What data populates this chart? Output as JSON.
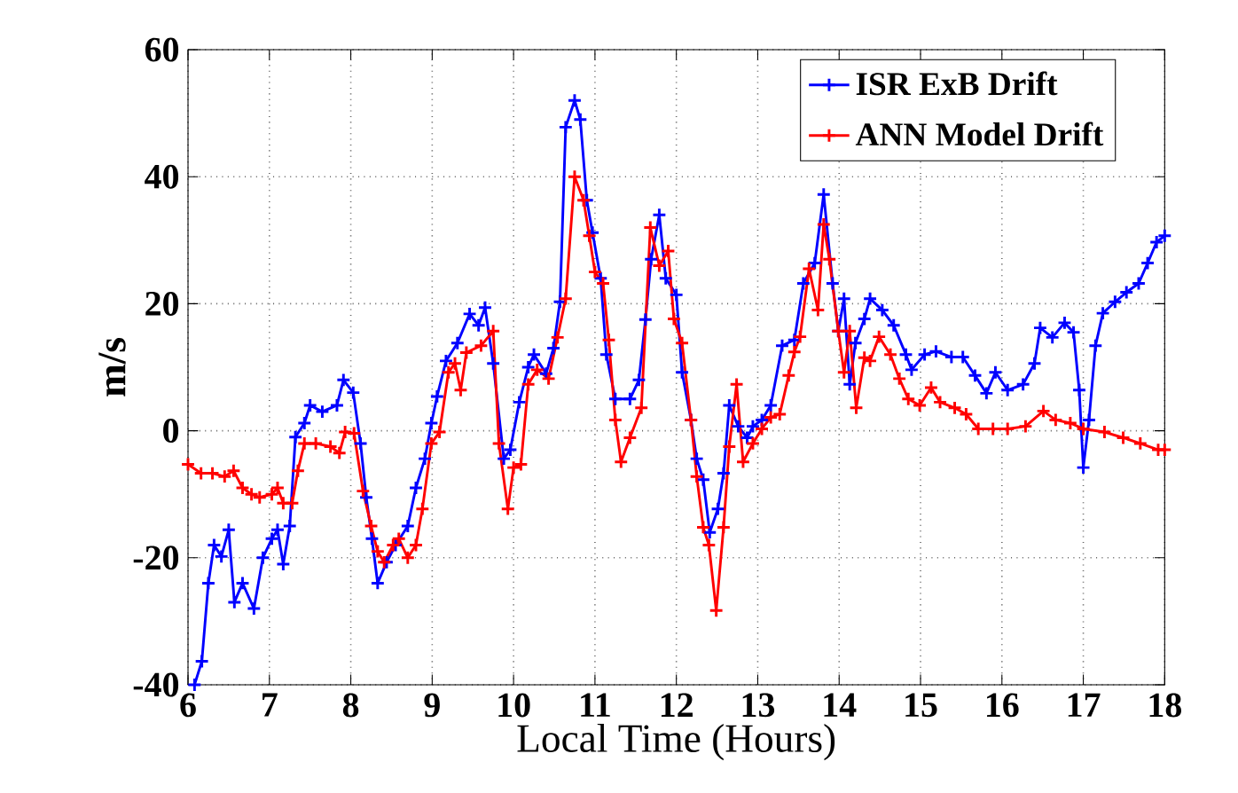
{
  "chart_data": {
    "type": "line",
    "xlabel": "Local Time (Hours)",
    "ylabel": "m/s",
    "xlim": [
      6,
      18
    ],
    "ylim": [
      -40,
      60
    ],
    "xticks": [
      6,
      7,
      8,
      9,
      10,
      11,
      12,
      13,
      14,
      15,
      16,
      17,
      18
    ],
    "yticks": [
      -40,
      -20,
      0,
      20,
      40,
      60
    ],
    "grid": true,
    "legend": "top right",
    "marker": "cross",
    "line_style": "solid",
    "series": [
      {
        "name": "ISR ExB Drift",
        "color": "#0000ff",
        "x": [
          6.08,
          6.17,
          6.25,
          6.32,
          6.41,
          6.5,
          6.57,
          6.67,
          6.81,
          6.92,
          7.03,
          7.1,
          7.17,
          7.25,
          7.32,
          7.43,
          7.5,
          7.65,
          7.83,
          7.91,
          8.03,
          8.12,
          8.19,
          8.26,
          8.33,
          8.44,
          8.55,
          8.7,
          8.8,
          8.91,
          8.99,
          9.06,
          9.17,
          9.31,
          9.46,
          9.57,
          9.65,
          9.75,
          9.88,
          9.96,
          10.07,
          10.18,
          10.25,
          10.4,
          10.49,
          10.57,
          10.64,
          10.75,
          10.82,
          10.9,
          10.97,
          11.07,
          11.14,
          11.25,
          11.43,
          11.54,
          11.62,
          11.69,
          11.79,
          11.87,
          12.0,
          12.07,
          12.18,
          12.25,
          12.33,
          12.41,
          12.51,
          12.58,
          12.65,
          12.76,
          12.87,
          12.94,
          13.05,
          13.16,
          13.3,
          13.45,
          13.56,
          13.7,
          13.81,
          13.92,
          13.99,
          14.06,
          14.13,
          14.2,
          14.31,
          14.38,
          14.53,
          14.67,
          14.82,
          14.89,
          15.05,
          15.19,
          15.38,
          15.52,
          15.67,
          15.81,
          15.92,
          16.07,
          16.26,
          16.4,
          16.47,
          16.62,
          16.77,
          16.88,
          16.95,
          17.0,
          17.07,
          17.15,
          17.24,
          17.39,
          17.53,
          17.68,
          17.79,
          17.9,
          18.0
        ],
        "values": [
          -40,
          -36.3,
          -24,
          -18,
          -19.8,
          -15.6,
          -27,
          -24,
          -28,
          -20,
          -17,
          -15.6,
          -21,
          -15,
          -1,
          1.2,
          4,
          3,
          4,
          8,
          6,
          -2,
          -10.5,
          -17,
          -24,
          -20.7,
          -18,
          -15,
          -9,
          -4.4,
          1.2,
          5.4,
          11,
          13.8,
          18.4,
          16.6,
          19.4,
          10.6,
          -4.4,
          -3,
          4.5,
          10,
          12,
          9,
          13,
          20.3,
          47.8,
          52,
          49,
          36.3,
          31.2,
          24,
          12,
          5,
          5,
          8,
          17.5,
          27,
          34,
          24,
          21.4,
          9.2,
          1.7,
          -4.4,
          -7.7,
          -16,
          -12.3,
          -6.7,
          4,
          0.7,
          -1.1,
          0.7,
          1.7,
          4,
          13.4,
          14.3,
          23.2,
          26.4,
          37.2,
          23.2,
          15.7,
          20.8,
          7.3,
          13.8,
          17.6,
          20.8,
          19,
          16.6,
          12,
          9.6,
          12,
          12.5,
          11.6,
          11.6,
          8.7,
          5.9,
          9.2,
          6.4,
          7.3,
          10.6,
          16.2,
          14.7,
          17,
          15.5,
          6.4,
          -5.8,
          1.7,
          13.4,
          18.5,
          20.3,
          21.8,
          23.2,
          26.4,
          29.7,
          30.7
        ]
      },
      {
        "name": "ANN Model Drift",
        "color": "#ff0000",
        "x": [
          6.0,
          6.16,
          6.3,
          6.45,
          6.56,
          6.67,
          6.78,
          6.88,
          7.03,
          7.1,
          7.17,
          7.28,
          7.35,
          7.43,
          7.57,
          7.75,
          7.86,
          7.93,
          8.04,
          8.15,
          8.25,
          8.33,
          8.41,
          8.52,
          8.59,
          8.7,
          8.8,
          8.88,
          8.99,
          9.09,
          9.2,
          9.28,
          9.35,
          9.42,
          9.6,
          9.75,
          9.82,
          9.93,
          10.0,
          10.09,
          10.18,
          10.29,
          10.43,
          10.54,
          10.64,
          10.75,
          10.86,
          10.93,
          11.0,
          11.1,
          11.17,
          11.25,
          11.32,
          11.43,
          11.57,
          11.68,
          11.79,
          11.9,
          11.97,
          12.07,
          12.18,
          12.25,
          12.33,
          12.4,
          12.49,
          12.58,
          12.65,
          12.74,
          12.82,
          12.94,
          13.05,
          13.16,
          13.27,
          13.38,
          13.45,
          13.52,
          13.63,
          13.74,
          13.81,
          13.88,
          13.99,
          14.06,
          14.13,
          14.21,
          14.31,
          14.38,
          14.49,
          14.63,
          14.74,
          14.85,
          14.99,
          15.13,
          15.24,
          15.42,
          15.56,
          15.71,
          15.89,
          16.07,
          16.29,
          16.51,
          16.66,
          16.84,
          17.0,
          17.26,
          17.49,
          17.7,
          17.92,
          18.0
        ],
        "values": [
          -5.3,
          -6.7,
          -6.7,
          -7.2,
          -6.3,
          -9,
          -10,
          -10.5,
          -10,
          -9,
          -11.4,
          -11.4,
          -6.3,
          -2,
          -2,
          -2.5,
          -3.5,
          -0.2,
          -0.4,
          -9.5,
          -15,
          -19,
          -20.7,
          -18,
          -17,
          -20,
          -18,
          -12.3,
          -2,
          -0.2,
          9.2,
          10.6,
          6.4,
          12.3,
          13.4,
          15.7,
          -2,
          -12.3,
          -5.8,
          -5.3,
          7.3,
          9.6,
          8.2,
          14.7,
          20.8,
          40,
          36.3,
          30.7,
          25,
          23.2,
          14.3,
          1.7,
          -4.9,
          -1.1,
          3.6,
          32,
          26,
          28.3,
          17.6,
          13.8,
          1.7,
          -7.2,
          -15.2,
          -18,
          -28.3,
          -15.2,
          -2.5,
          7.3,
          -4.9,
          -2,
          0.3,
          2.1,
          2.6,
          8.7,
          12.4,
          14.8,
          25.5,
          19,
          32.5,
          27,
          15.7,
          9.2,
          15.7,
          3.6,
          11.5,
          11,
          14.8,
          12,
          8.2,
          5,
          4,
          6.8,
          4.5,
          3.6,
          2.6,
          0.3,
          0.3,
          0.3,
          0.7,
          3.1,
          1.7,
          1.2,
          0.3,
          -0.2,
          -1.1,
          -2,
          -3,
          -3
        ]
      }
    ]
  }
}
